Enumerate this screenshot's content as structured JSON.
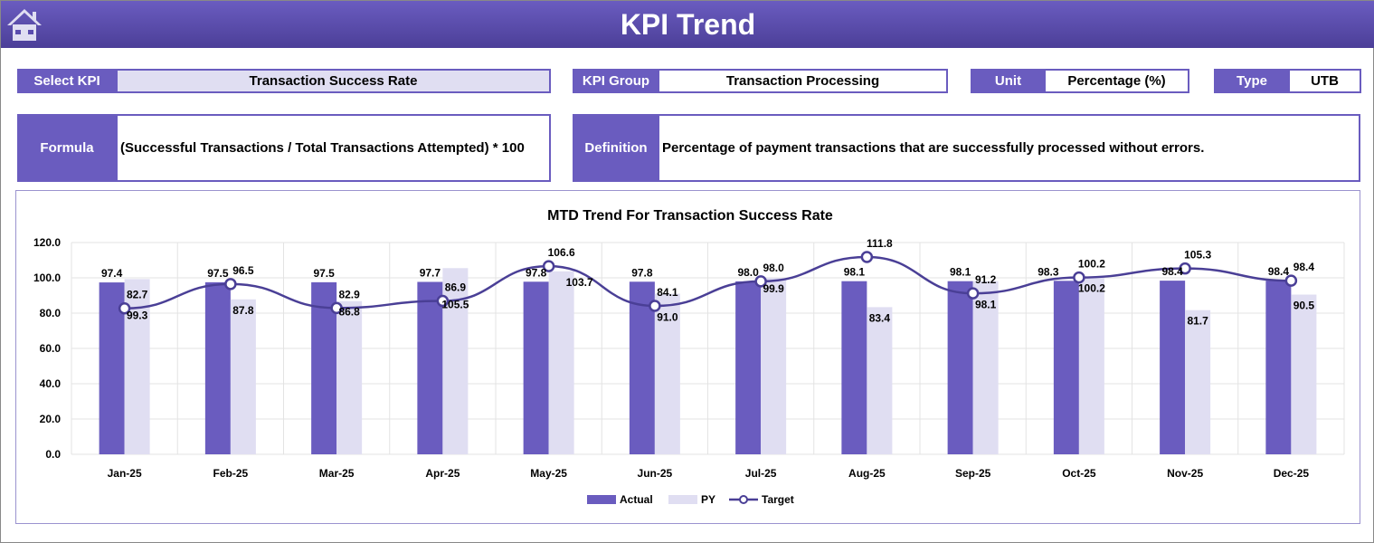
{
  "header": {
    "title": "KPI Trend",
    "home_icon": "home-icon"
  },
  "fields": {
    "select_kpi_label": "Select KPI",
    "select_kpi_value": "Transaction Success Rate",
    "kpi_group_label": "KPI Group",
    "kpi_group_value": "Transaction Processing",
    "unit_label": "Unit",
    "unit_value": "Percentage (%)",
    "type_label": "Type",
    "type_value": "UTB",
    "formula_label": "Formula",
    "formula_value": "(Successful Transactions / Total Transactions Attempted) * 100",
    "definition_label": "Definition",
    "definition_value": "Percentage of payment transactions that are successfully processed without errors."
  },
  "colors": {
    "accent": "#6a5cbf",
    "py": "#e0def2",
    "target": "#4a3f96"
  },
  "chart_data": {
    "type": "bar+line",
    "title": "MTD Trend For Transaction Success Rate",
    "categories": [
      "Jan-25",
      "Feb-25",
      "Mar-25",
      "Apr-25",
      "May-25",
      "Jun-25",
      "Jul-25",
      "Aug-25",
      "Sep-25",
      "Oct-25",
      "Nov-25",
      "Dec-25"
    ],
    "series": [
      {
        "name": "Actual",
        "type": "bar",
        "values": [
          97.4,
          97.5,
          97.5,
          97.7,
          97.8,
          97.8,
          98.0,
          98.1,
          98.1,
          98.3,
          98.4,
          98.4
        ]
      },
      {
        "name": "PY",
        "type": "bar",
        "values": [
          99.3,
          87.8,
          86.8,
          105.5,
          103.7,
          91.0,
          99.9,
          83.4,
          98.1,
          100.2,
          81.7,
          90.5
        ]
      },
      {
        "name": "Target",
        "type": "line",
        "values": [
          82.7,
          96.5,
          82.9,
          86.9,
          106.6,
          84.1,
          98.0,
          111.8,
          91.2,
          100.2,
          105.3,
          98.4
        ]
      }
    ],
    "yticks": [
      "0.0",
      "20.0",
      "40.0",
      "60.0",
      "80.0",
      "100.0",
      "120.0"
    ],
    "ylim": [
      0,
      120
    ],
    "grid": true,
    "legend": "bottom"
  }
}
